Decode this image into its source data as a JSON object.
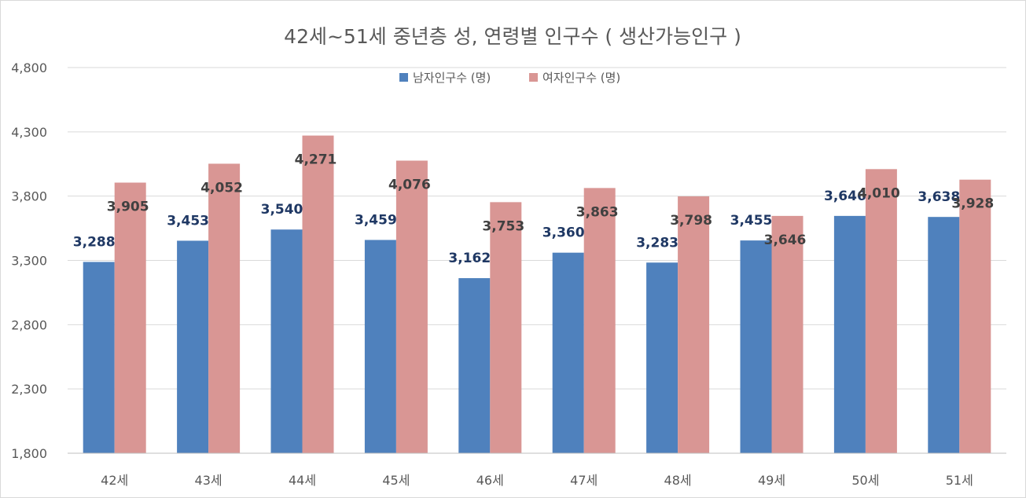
{
  "chart_data": {
    "type": "bar",
    "title": "42세~51세 중년층 성, 연령별 인구수 ( 생산가능인구 )",
    "categories": [
      "42세",
      "43세",
      "44세",
      "45세",
      "46세",
      "47세",
      "48세",
      "49세",
      "50세",
      "51세"
    ],
    "series": [
      {
        "name": "남자인구수 (명)",
        "color": "#4f81bd",
        "values": [
          3288,
          3453,
          3540,
          3459,
          3162,
          3360,
          3283,
          3455,
          3646,
          3638
        ]
      },
      {
        "name": "여자인구수 (명)",
        "color": "#d99694",
        "values": [
          3905,
          4052,
          4271,
          4076,
          3753,
          3863,
          3798,
          3646,
          4010,
          3928
        ]
      }
    ],
    "ylim": [
      1800,
      4800
    ],
    "yticks": [
      "1,800",
      "2,300",
      "2,800",
      "3,300",
      "3,800",
      "4,300",
      "4,800"
    ],
    "grid": true,
    "legend_position": "top"
  }
}
